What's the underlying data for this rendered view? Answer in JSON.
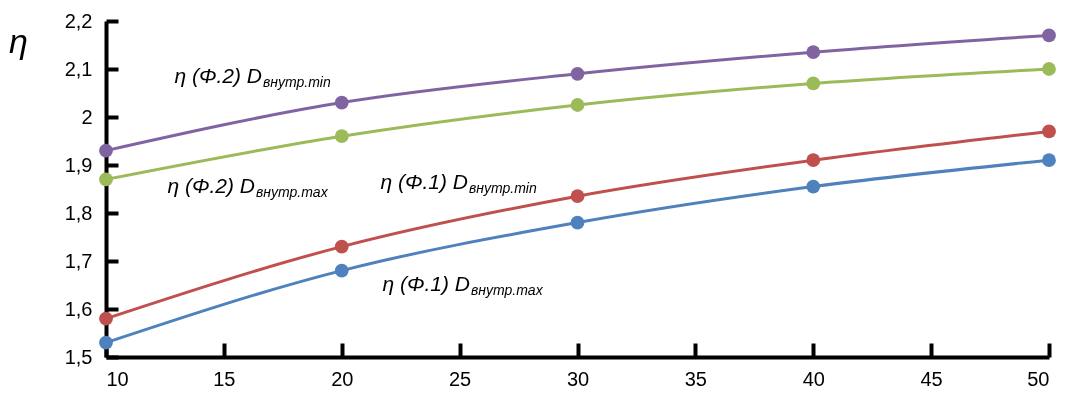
{
  "chart_data": {
    "type": "line",
    "ylabel": "η",
    "marker": "circle",
    "line_style": "solid",
    "grid": false,
    "x": [
      10,
      20,
      30,
      40,
      50
    ],
    "xlim": [
      10,
      50
    ],
    "xticks": [
      10,
      15,
      20,
      25,
      30,
      35,
      40,
      45,
      50
    ],
    "ylim": [
      1.5,
      2.2
    ],
    "yticks": [
      {
        "value": 1.5,
        "label": "1,5"
      },
      {
        "value": 1.6,
        "label": "1,6"
      },
      {
        "value": 1.7,
        "label": "1,7"
      },
      {
        "value": 1.8,
        "label": "1,8"
      },
      {
        "value": 1.9,
        "label": "1,9"
      },
      2,
      {
        "value": 2.1,
        "label": "2,1"
      },
      {
        "value": 2.2,
        "label": "2,2"
      }
    ],
    "series": [
      {
        "name": "η (Φ.2) D$_{внутр.min}$",
        "color": "#8064a2",
        "values": [
          1.93,
          2.03,
          2.09,
          2.135,
          2.17
        ]
      },
      {
        "name": "η (Φ.2) D$_{внутр.max}$",
        "color": "#9bbb59",
        "values": [
          1.87,
          1.96,
          2.025,
          2.07,
          2.1
        ]
      },
      {
        "name": "η (Φ.1) D$_{внутр.min}$",
        "color": "#c0504d",
        "values": [
          1.58,
          1.73,
          1.835,
          1.91,
          1.97
        ]
      },
      {
        "name": "η (Φ.1) D$_{внутр.max}$",
        "color": "#4f81bd",
        "values": [
          1.53,
          1.68,
          1.78,
          1.855,
          1.91
        ]
      }
    ]
  }
}
